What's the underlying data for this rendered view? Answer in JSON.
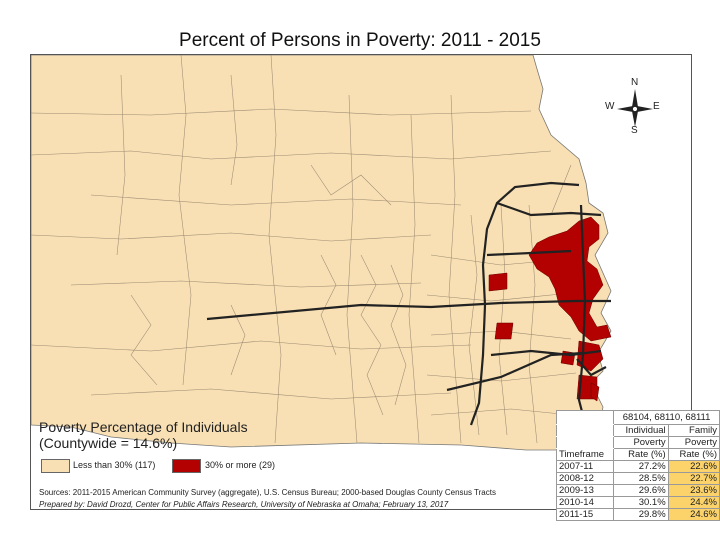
{
  "title": "Percent of Persons in Poverty: 2011 - 2015",
  "colors": {
    "low": "#f8e0b4",
    "high": "#b30000",
    "highlight": "#fbd36a"
  },
  "compass": {
    "n": "N",
    "s": "S",
    "e": "E",
    "w": "W"
  },
  "legend": {
    "title": "Poverty Percentage of Individuals",
    "subtitle": "(Countywide = 14.6%)",
    "low_label": "Less than 30% (117)",
    "high_label": "30% or more (29)"
  },
  "sources": "Sources: 2011-2015 American Community Survey (aggregate), U.S. Census Bureau; 2000-based Douglas County Census Tracts",
  "prepared": "Prepared by: David Drozd, Center for Public Affairs Research, University of Nebraska at Omaha; February 13, 2017",
  "table": {
    "zips": "68104, 68110, 68111",
    "col1_line1": "Individual",
    "col1_line2": "Poverty",
    "col1_line3": "Rate (%)",
    "col2_line1": "Family",
    "col2_line2": "Poverty",
    "col2_line3": "Rate (%)",
    "timeframe_label": "Timeframe",
    "rows": [
      {
        "timeframe": "2007-11",
        "individual": "27.2%",
        "family": "22.6%"
      },
      {
        "timeframe": "2008-12",
        "individual": "28.5%",
        "family": "22.7%"
      },
      {
        "timeframe": "2009-13",
        "individual": "29.6%",
        "family": "23.6%"
      },
      {
        "timeframe": "2010-14",
        "individual": "30.1%",
        "family": "24.4%"
      },
      {
        "timeframe": "2011-15",
        "individual": "29.8%",
        "family": "24.6%"
      }
    ]
  }
}
